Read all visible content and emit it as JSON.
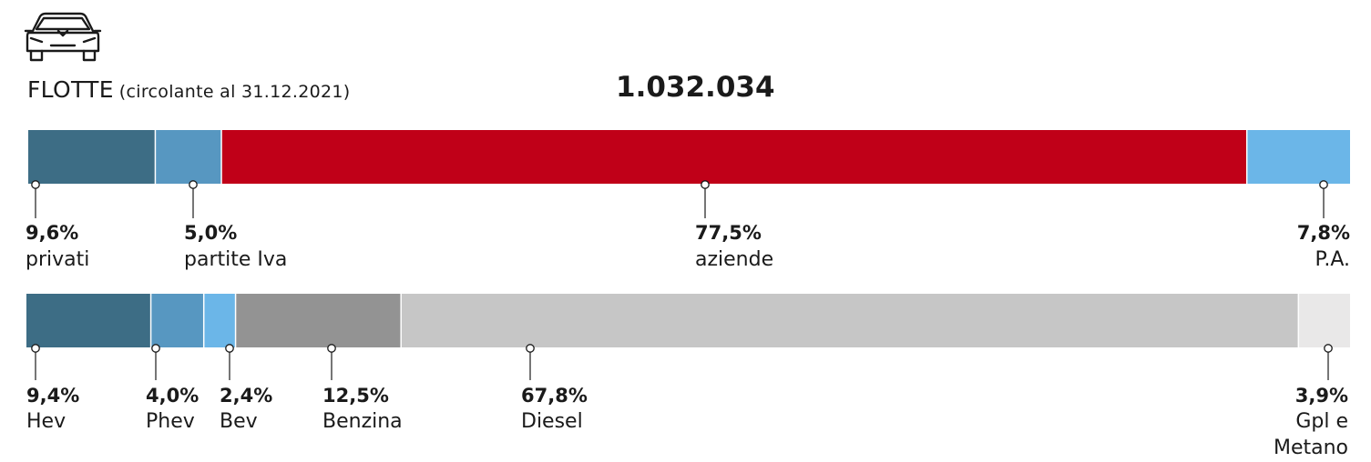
{
  "header": {
    "title": "FLOTTE",
    "subtitle": "(circolante al 31.12.2021)",
    "total": "1.032.034",
    "icon": "car-icon"
  },
  "colors": {
    "privati": "#3d6d85",
    "partite_iva": "#5797c1",
    "aziende": "#c00018",
    "pa": "#6bb6e8",
    "hev": "#3d6d85",
    "phev": "#5797c1",
    "bev": "#6bb6e8",
    "benzina": "#939393",
    "diesel": "#c6c6c6",
    "gpl_metano": "#e9e8e8"
  },
  "chart_data": [
    {
      "type": "bar",
      "stacked": true,
      "orientation": "horizontal",
      "unit": "%",
      "categories": [
        "privati",
        "partite Iva",
        "aziende",
        "P.A."
      ],
      "values": [
        9.6,
        5.0,
        77.5,
        7.8
      ],
      "value_labels": [
        "9,6%",
        "5,0%",
        "77,5%",
        "7,8%"
      ],
      "colors": [
        "#3d6d85",
        "#5797c1",
        "#c00018",
        "#6bb6e8"
      ]
    },
    {
      "type": "bar",
      "stacked": true,
      "orientation": "horizontal",
      "unit": "%",
      "categories": [
        "Hev",
        "Phev",
        "Bev",
        "Benzina",
        "Diesel",
        "Gpl e Metano"
      ],
      "values": [
        9.4,
        4.0,
        2.4,
        12.5,
        67.8,
        3.9
      ],
      "value_labels": [
        "9,4%",
        "4,0%",
        "2,4%",
        "12,5%",
        "67,8%",
        "3,9%"
      ],
      "colors": [
        "#3d6d85",
        "#5797c1",
        "#6bb6e8",
        "#939393",
        "#c6c6c6",
        "#e9e8e8"
      ]
    }
  ]
}
